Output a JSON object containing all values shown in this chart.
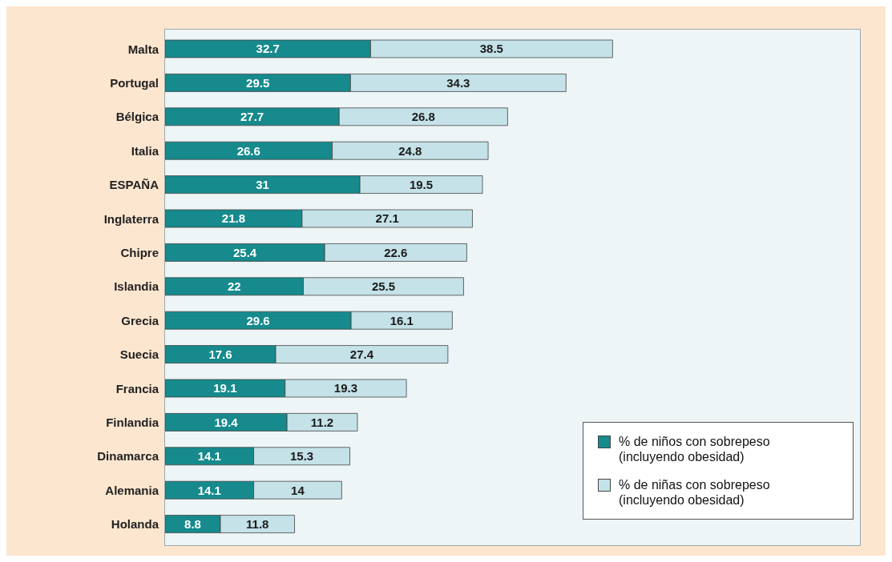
{
  "chart_data": {
    "type": "bar",
    "orientation": "horizontal",
    "stacked": true,
    "data_labels": true,
    "legend": "bottom right",
    "tick_labels": "y",
    "categories": [
      "Malta",
      "Portugal",
      "Bélgica",
      "Italia",
      "ESPAÑA",
      "Inglaterra",
      "Chipre",
      "Islandia",
      "Grecia",
      "Suecia",
      "Francia",
      "Finlandia",
      "Dinamarca",
      "Alemania",
      "Holanda"
    ],
    "series": [
      {
        "name": "% de niños con sobrepeso (incluyendo obesidad)",
        "color": "#168a8c",
        "values": [
          32.7,
          29.5,
          27.7,
          26.6,
          31,
          21.8,
          25.4,
          22,
          29.6,
          17.6,
          19.1,
          19.4,
          14.1,
          14.1,
          8.8
        ]
      },
      {
        "name": "% de niñas con sobrepeso (incluyendo obesidad)",
        "color": "#c4e2e8",
        "values": [
          38.5,
          34.3,
          26.8,
          24.8,
          19.5,
          27.1,
          22.6,
          25.5,
          16.1,
          27.4,
          19.3,
          11.2,
          15.3,
          14,
          11.8
        ]
      }
    ]
  }
}
